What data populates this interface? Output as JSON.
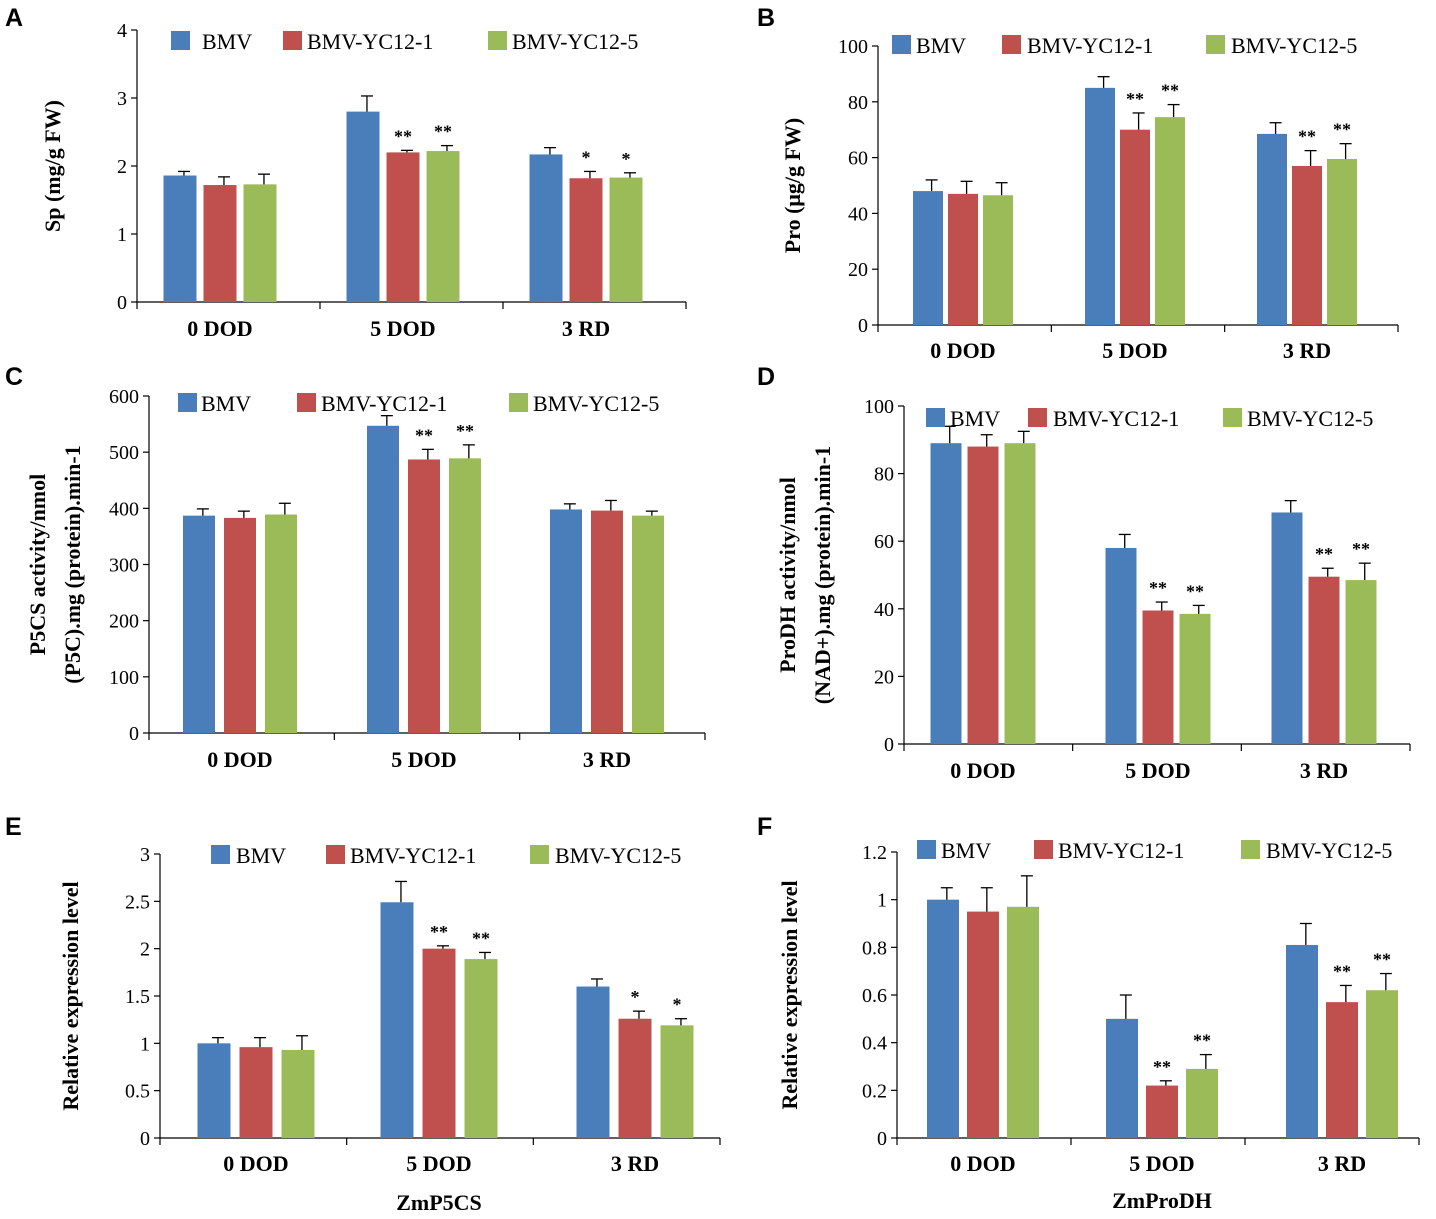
{
  "colors": {
    "BMV": "#4a7ebb",
    "BMV-YC12-1": "#c0504d",
    "BMV-YC12-5": "#9bbb59"
  },
  "chart_data": [
    {
      "panel": "A",
      "type": "bar",
      "categories": [
        "0 DOD",
        "5 DOD",
        "3 RD"
      ],
      "ylabel": "Sp (mg/g FW)",
      "xlabel": "",
      "ylim": [
        0,
        4
      ],
      "yticks": [
        "0",
        "1",
        "2",
        "3",
        "4"
      ],
      "series": [
        {
          "name": "BMV",
          "values": [
            1.86,
            2.8,
            2.17
          ],
          "errors": [
            0.06,
            0.23,
            0.1
          ],
          "sig": [
            "",
            "",
            ""
          ]
        },
        {
          "name": "BMV-YC12-1",
          "values": [
            1.72,
            2.2,
            1.82
          ],
          "errors": [
            0.12,
            0.03,
            0.1
          ],
          "sig": [
            "",
            "**",
            "*"
          ]
        },
        {
          "name": "BMV-YC12-5",
          "values": [
            1.73,
            2.22,
            1.83
          ],
          "errors": [
            0.15,
            0.08,
            0.07
          ],
          "sig": [
            "",
            "**",
            "*"
          ]
        }
      ]
    },
    {
      "panel": "B",
      "type": "bar",
      "categories": [
        "0 DOD",
        "5 DOD",
        "3 RD"
      ],
      "ylabel": "Pro (μg/g FW)",
      "xlabel": "",
      "ylim": [
        0,
        100
      ],
      "yticks": [
        "0",
        "20",
        "40",
        "60",
        "80",
        "100"
      ],
      "series": [
        {
          "name": "BMV",
          "values": [
            48,
            85,
            68.5
          ],
          "errors": [
            4,
            4,
            4
          ],
          "sig": [
            "",
            "",
            ""
          ]
        },
        {
          "name": "BMV-YC12-1",
          "values": [
            47,
            70,
            57
          ],
          "errors": [
            4.5,
            6,
            5.5
          ],
          "sig": [
            "",
            "**",
            "**"
          ]
        },
        {
          "name": "BMV-YC12-5",
          "values": [
            46.5,
            74.5,
            59.5
          ],
          "errors": [
            4.5,
            4.5,
            5.5
          ],
          "sig": [
            "",
            "**",
            "**"
          ]
        }
      ]
    },
    {
      "panel": "C",
      "type": "bar",
      "categories": [
        "0 DOD",
        "5 DOD",
        "3 RD"
      ],
      "ylabel": "P5CS activity/nmol (P5C).mg (protein).min-1",
      "xlabel": "",
      "ylim": [
        0,
        600
      ],
      "yticks": [
        "0",
        "100",
        "200",
        "300",
        "400",
        "500",
        "600"
      ],
      "series": [
        {
          "name": "BMV",
          "values": [
            387,
            547,
            398
          ],
          "errors": [
            12,
            18,
            10
          ],
          "sig": [
            "",
            "",
            ""
          ]
        },
        {
          "name": "BMV-YC12-1",
          "values": [
            383,
            487,
            396
          ],
          "errors": [
            12,
            18,
            18
          ],
          "sig": [
            "",
            "**",
            ""
          ]
        },
        {
          "name": "BMV-YC12-5",
          "values": [
            389,
            489,
            387
          ],
          "errors": [
            20,
            24,
            8
          ],
          "sig": [
            "",
            "**",
            ""
          ]
        }
      ]
    },
    {
      "panel": "D",
      "type": "bar",
      "categories": [
        "0 DOD",
        "5 DOD",
        "3 RD"
      ],
      "ylabel": "ProDH activity/nmol (NAD+).mg (protein).min-1",
      "xlabel": "",
      "ylim": [
        0,
        100
      ],
      "yticks": [
        "0",
        "20",
        "40",
        "60",
        "80",
        "100"
      ],
      "series": [
        {
          "name": "BMV",
          "values": [
            89,
            58,
            68.5
          ],
          "errors": [
            5,
            4,
            3.5
          ],
          "sig": [
            "",
            "",
            ""
          ]
        },
        {
          "name": "BMV-YC12-1",
          "values": [
            88,
            39.5,
            49.5
          ],
          "errors": [
            3.5,
            2.5,
            2.5
          ],
          "sig": [
            "",
            "**",
            "**"
          ]
        },
        {
          "name": "BMV-YC12-5",
          "values": [
            89,
            38.5,
            48.5
          ],
          "errors": [
            3.5,
            2.5,
            5
          ],
          "sig": [
            "",
            "**",
            "**"
          ]
        }
      ]
    },
    {
      "panel": "E",
      "type": "bar",
      "categories": [
        "0 DOD",
        "5 DOD",
        "3 RD"
      ],
      "ylabel": "Relative expression level",
      "xlabel": "ZmP5CS",
      "ylim": [
        0,
        3
      ],
      "yticks": [
        "0",
        "0.5",
        "1",
        "1.5",
        "2",
        "2.5",
        "3"
      ],
      "series": [
        {
          "name": "BMV",
          "values": [
            1.0,
            2.49,
            1.6
          ],
          "errors": [
            0.06,
            0.22,
            0.08
          ],
          "sig": [
            "",
            "",
            ""
          ]
        },
        {
          "name": "BMV-YC12-1",
          "values": [
            0.96,
            2.0,
            1.26
          ],
          "errors": [
            0.1,
            0.03,
            0.08
          ],
          "sig": [
            "",
            "**",
            "*"
          ]
        },
        {
          "name": "BMV-YC12-5",
          "values": [
            0.93,
            1.89,
            1.19
          ],
          "errors": [
            0.15,
            0.07,
            0.07
          ],
          "sig": [
            "",
            "**",
            "*"
          ]
        }
      ]
    },
    {
      "panel": "F",
      "type": "bar",
      "categories": [
        "0 DOD",
        "5 DOD",
        "3 RD"
      ],
      "ylabel": "Relative expression level",
      "xlabel": "ZmProDH",
      "ylim": [
        0,
        1.2
      ],
      "yticks": [
        "0",
        "0.2",
        "0.4",
        "0.6",
        "0.8",
        "1",
        "1.2"
      ],
      "series": [
        {
          "name": "BMV",
          "values": [
            1.0,
            0.5,
            0.81
          ],
          "errors": [
            0.05,
            0.1,
            0.09
          ],
          "sig": [
            "",
            "",
            ""
          ]
        },
        {
          "name": "BMV-YC12-1",
          "values": [
            0.95,
            0.22,
            0.57
          ],
          "errors": [
            0.1,
            0.02,
            0.07
          ],
          "sig": [
            "",
            "**",
            "**"
          ]
        },
        {
          "name": "BMV-YC12-5",
          "values": [
            0.97,
            0.29,
            0.62
          ],
          "errors": [
            0.13,
            0.06,
            0.07
          ],
          "sig": [
            "",
            "**",
            "**"
          ]
        }
      ]
    }
  ]
}
